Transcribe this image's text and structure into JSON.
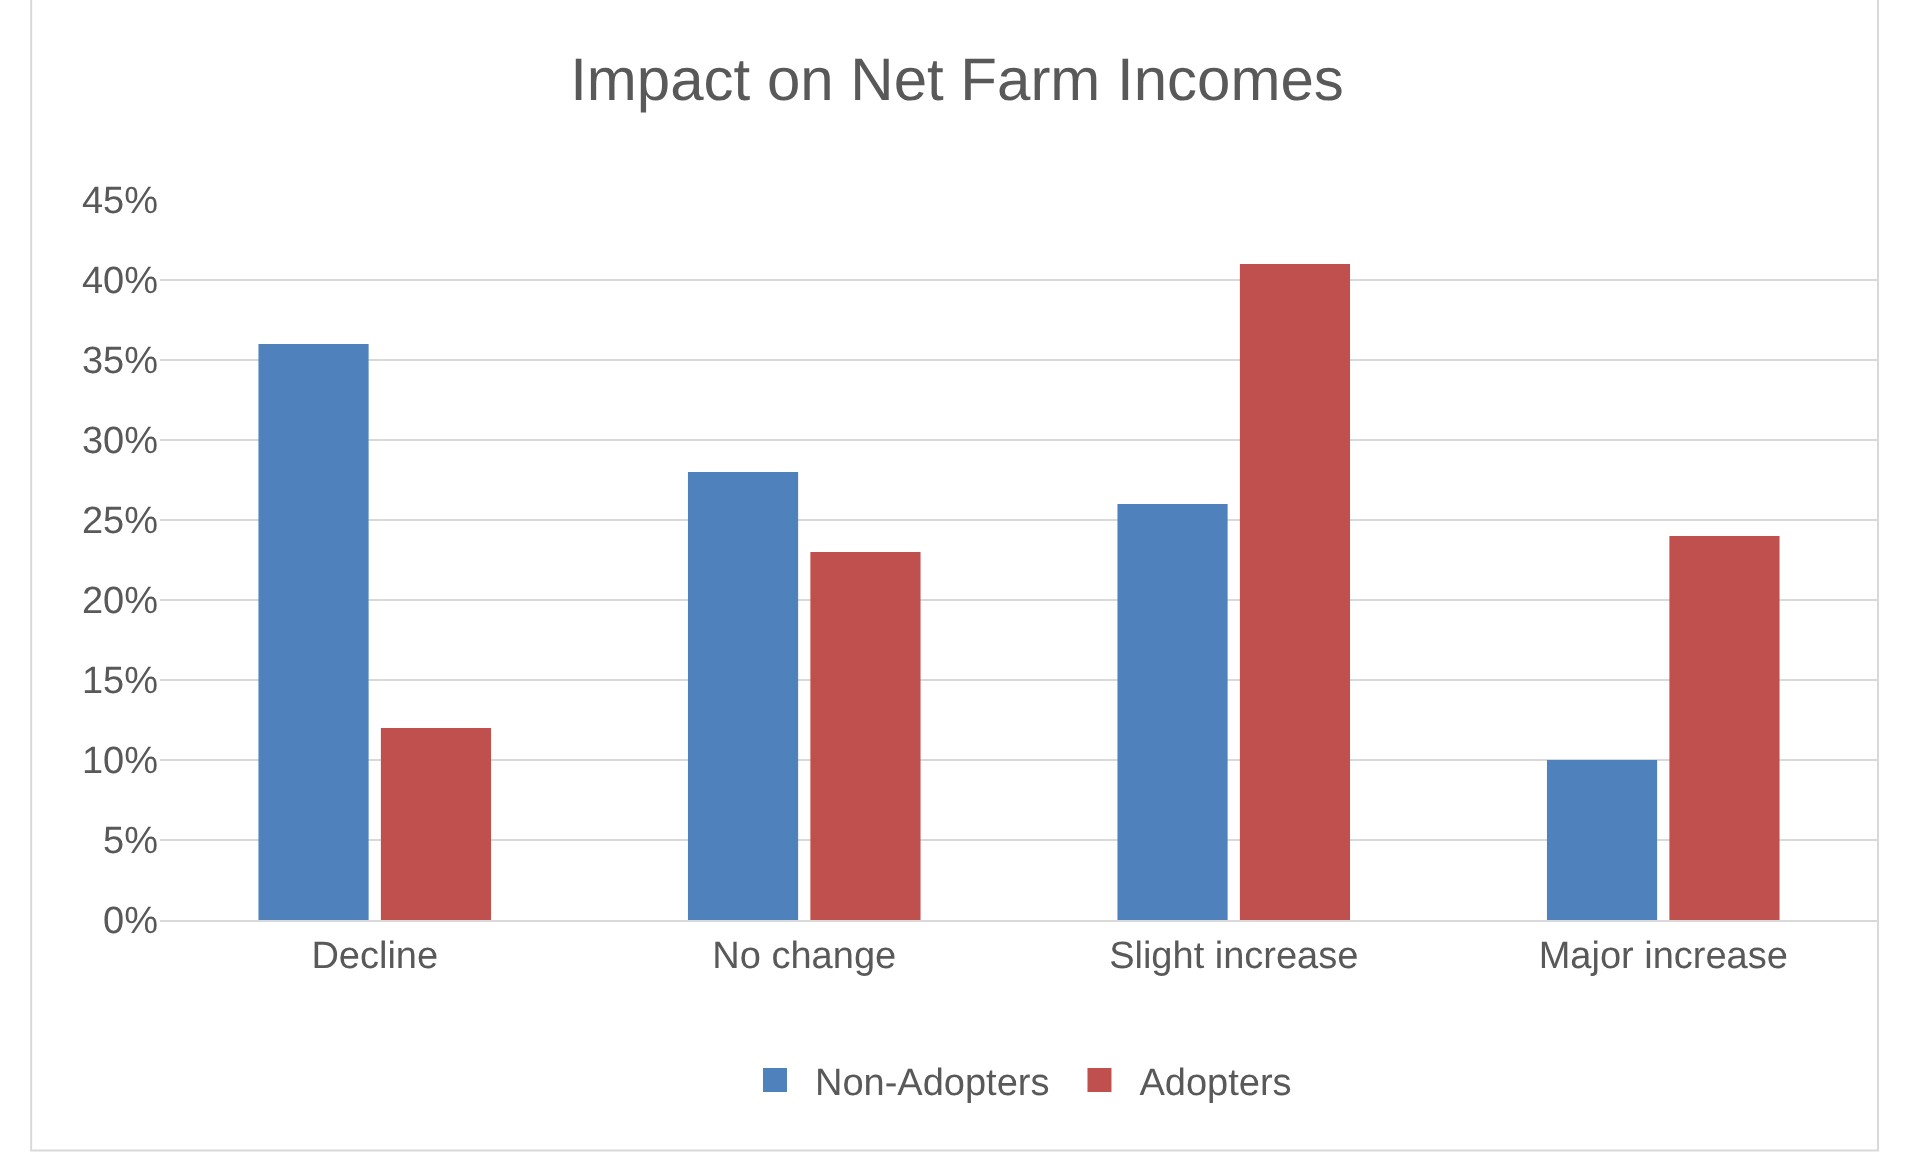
{
  "chart_data": {
    "type": "bar",
    "title": "Impact on Net Farm Incomes",
    "categories": [
      "Decline",
      "No change",
      "Slight increase",
      "Major increase"
    ],
    "series": [
      {
        "name": "Non-Adopters",
        "color": "#4f81bd",
        "values": [
          36,
          28,
          26,
          10
        ]
      },
      {
        "name": "Adopters",
        "color": "#c0504d",
        "values": [
          12,
          23,
          41,
          24
        ]
      }
    ],
    "ylim": [
      0,
      45
    ],
    "yticks": [
      {
        "value": 0,
        "label": "0%"
      },
      {
        "value": 5,
        "label": "5%"
      },
      {
        "value": 10,
        "label": "10%"
      },
      {
        "value": 15,
        "label": "15%"
      },
      {
        "value": 20,
        "label": "20%"
      },
      {
        "value": 25,
        "label": "25%"
      },
      {
        "value": 30,
        "label": "30%"
      },
      {
        "value": 35,
        "label": "35%"
      },
      {
        "value": 40,
        "label": "40%"
      },
      {
        "value": 45,
        "label": "45%"
      }
    ],
    "grid": "y",
    "legend": "bottom"
  }
}
